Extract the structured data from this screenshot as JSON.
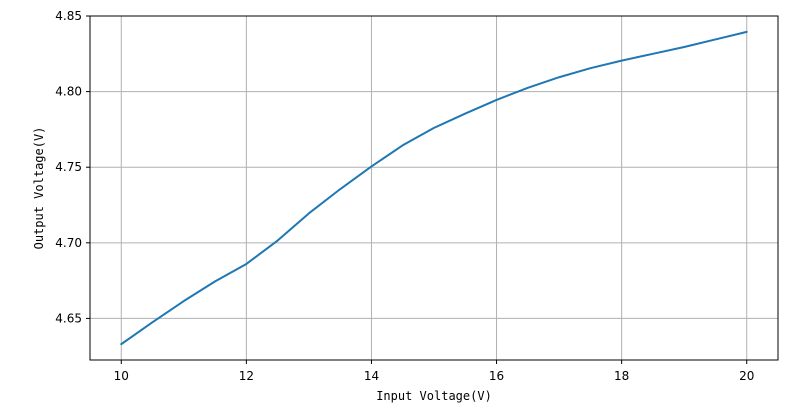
{
  "chart_data": {
    "type": "line",
    "xlabel": "Input Voltage(V)",
    "ylabel": "Output Voltage(V)",
    "xlim": [
      9.5,
      20.5
    ],
    "ylim": [
      4.6225,
      4.85
    ],
    "xticks": [
      10,
      12,
      14,
      16,
      18,
      20
    ],
    "yticks": [
      4.65,
      4.7,
      4.75,
      4.8,
      4.85
    ],
    "xtick_labels": [
      "10",
      "12",
      "14",
      "16",
      "18",
      "20"
    ],
    "ytick_labels": [
      "4.65",
      "4.70",
      "4.75",
      "4.80",
      "4.85"
    ],
    "grid": true,
    "series": [
      {
        "color": "#1f77b4",
        "x": [
          10,
          10.5,
          11,
          11.5,
          12,
          12.5,
          13,
          13.5,
          14,
          14.5,
          15,
          15.5,
          16,
          16.5,
          17,
          17.5,
          18,
          18.5,
          19,
          19.5,
          20
        ],
        "y": [
          4.633,
          4.6475,
          4.6615,
          4.6745,
          4.686,
          4.7015,
          4.7195,
          4.7355,
          4.7505,
          4.7645,
          4.776,
          4.7855,
          4.7945,
          4.8025,
          4.8095,
          4.8155,
          4.8205,
          4.825,
          4.8295,
          4.8345,
          4.8395
        ]
      }
    ]
  }
}
